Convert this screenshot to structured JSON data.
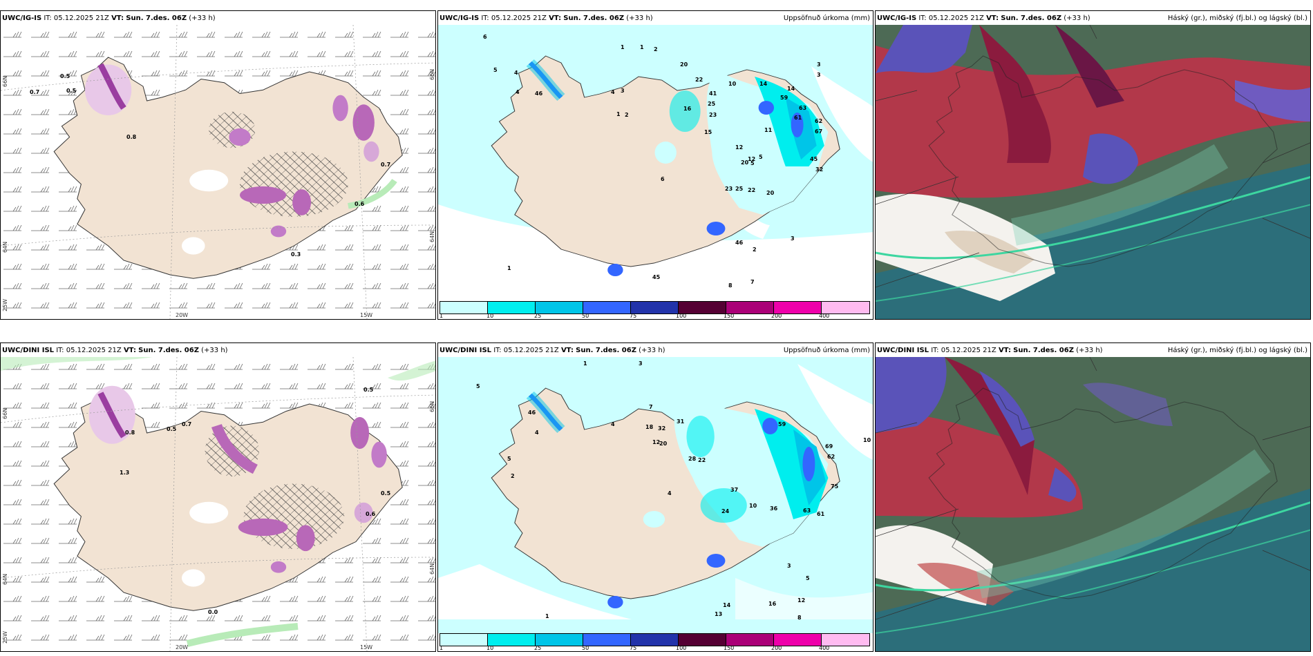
{
  "panels": [
    {
      "model": "UWC/IG-IS",
      "it_label": "IT:",
      "it": "05.12.2025 21Z",
      "vt_label": "VT:",
      "vt": "Sun. 7.des. 06Z",
      "lead": "(+33 h)",
      "right_title": "",
      "grid_labels": {
        "lat66": "66N",
        "lat64": "64N",
        "lon20": "20W",
        "lon15": "15W",
        "lon25": "25W",
        "lat66r": "66N",
        "lat64r": "64N"
      },
      "values": [
        "0.5",
        "0.5",
        "0.7",
        "0.8",
        "0.7",
        "0.6",
        "0.3"
      ]
    },
    {
      "model": "UWC/IG-IS",
      "it_label": "IT:",
      "it": "05.12.2025 21Z",
      "vt_label": "VT:",
      "vt": "Sun. 7.des. 06Z",
      "lead": "(+33 h)",
      "right_title": "Uppsöfnuð úrkoma (mm)",
      "values": [
        "6",
        "5",
        "4",
        "4",
        "46",
        "4",
        "3",
        "1",
        "2",
        "1",
        "1",
        "2",
        "20",
        "22",
        "41",
        "25",
        "23",
        "10",
        "16",
        "15",
        "12",
        "14",
        "59",
        "63",
        "61",
        "62",
        "67",
        "45",
        "32",
        "20",
        "5",
        "23",
        "25",
        "22",
        "20",
        "6",
        "46",
        "2",
        "3",
        "8",
        "7",
        "1",
        "45",
        "3",
        "3",
        "14",
        "11",
        "12",
        "5"
      ],
      "colorbar": {
        "colors": [
          "#ccffff",
          "#00eeee",
          "#00c5e8",
          "#3366ff",
          "#2233aa",
          "#550033",
          "#aa0077",
          "#ee00aa",
          "#ffbbf0"
        ],
        "labels": [
          "1",
          "10",
          "25",
          "50",
          "75",
          "100",
          "150",
          "200",
          "400"
        ]
      }
    },
    {
      "model": "UWC/IG-IS",
      "it_label": "IT:",
      "it": "05.12.2025 21Z",
      "vt_label": "VT:",
      "vt": "Sun. 7.des. 06Z",
      "lead": "(+33 h)",
      "right_title": "Háský (gr.), miðský (fj.bl.) og lágský (bl.)"
    },
    {
      "model": "UWC/DINI ISL",
      "it_label": "IT:",
      "it": "05.12.2025 21Z",
      "vt_label": "VT:",
      "vt": "Sun. 7.des. 06Z",
      "lead": "(+33 h)",
      "right_title": "",
      "grid_labels": {
        "lat66": "66N",
        "lat64": "64N",
        "lon20": "20W",
        "lon15": "15W",
        "lon25": "25W",
        "lat66r": "66N",
        "lat64r": "64N"
      },
      "values": [
        "0.5",
        "0.8",
        "0.7",
        "0.5",
        "1.3",
        "0.6",
        "0.0",
        "0.5"
      ]
    },
    {
      "model": "UWC/DINI ISL",
      "it_label": "IT:",
      "it": "05.12.2025 21Z",
      "vt_label": "VT:",
      "vt": "Sun. 7.des. 06Z",
      "lead": "(+33 h)",
      "right_title": "Uppsöfnuð úrkoma (mm)",
      "values": [
        "5",
        "1",
        "3",
        "4",
        "5",
        "2",
        "46",
        "4",
        "7",
        "18",
        "32",
        "31",
        "12",
        "20",
        "28",
        "22",
        "37",
        "24",
        "36",
        "10",
        "59",
        "69",
        "62",
        "75",
        "63",
        "61",
        "16",
        "12",
        "14",
        "13",
        "8",
        "5",
        "3",
        "1",
        "10",
        "4"
      ],
      "colorbar": {
        "colors": [
          "#ccffff",
          "#00eeee",
          "#00c5e8",
          "#3366ff",
          "#2233aa",
          "#550033",
          "#aa0077",
          "#ee00aa",
          "#ffbbf0"
        ],
        "labels": [
          "1",
          "10",
          "25",
          "50",
          "75",
          "100",
          "150",
          "200",
          "400"
        ]
      }
    },
    {
      "model": "UWC/DINI ISL",
      "it_label": "IT:",
      "it": "05.12.2025 21Z",
      "vt_label": "VT:",
      "vt": "Sun. 7.des. 06Z",
      "lead": "(+33 h)",
      "right_title": "Háský (gr.), miðský (fj.bl.) og lágský (bl.)"
    }
  ]
}
